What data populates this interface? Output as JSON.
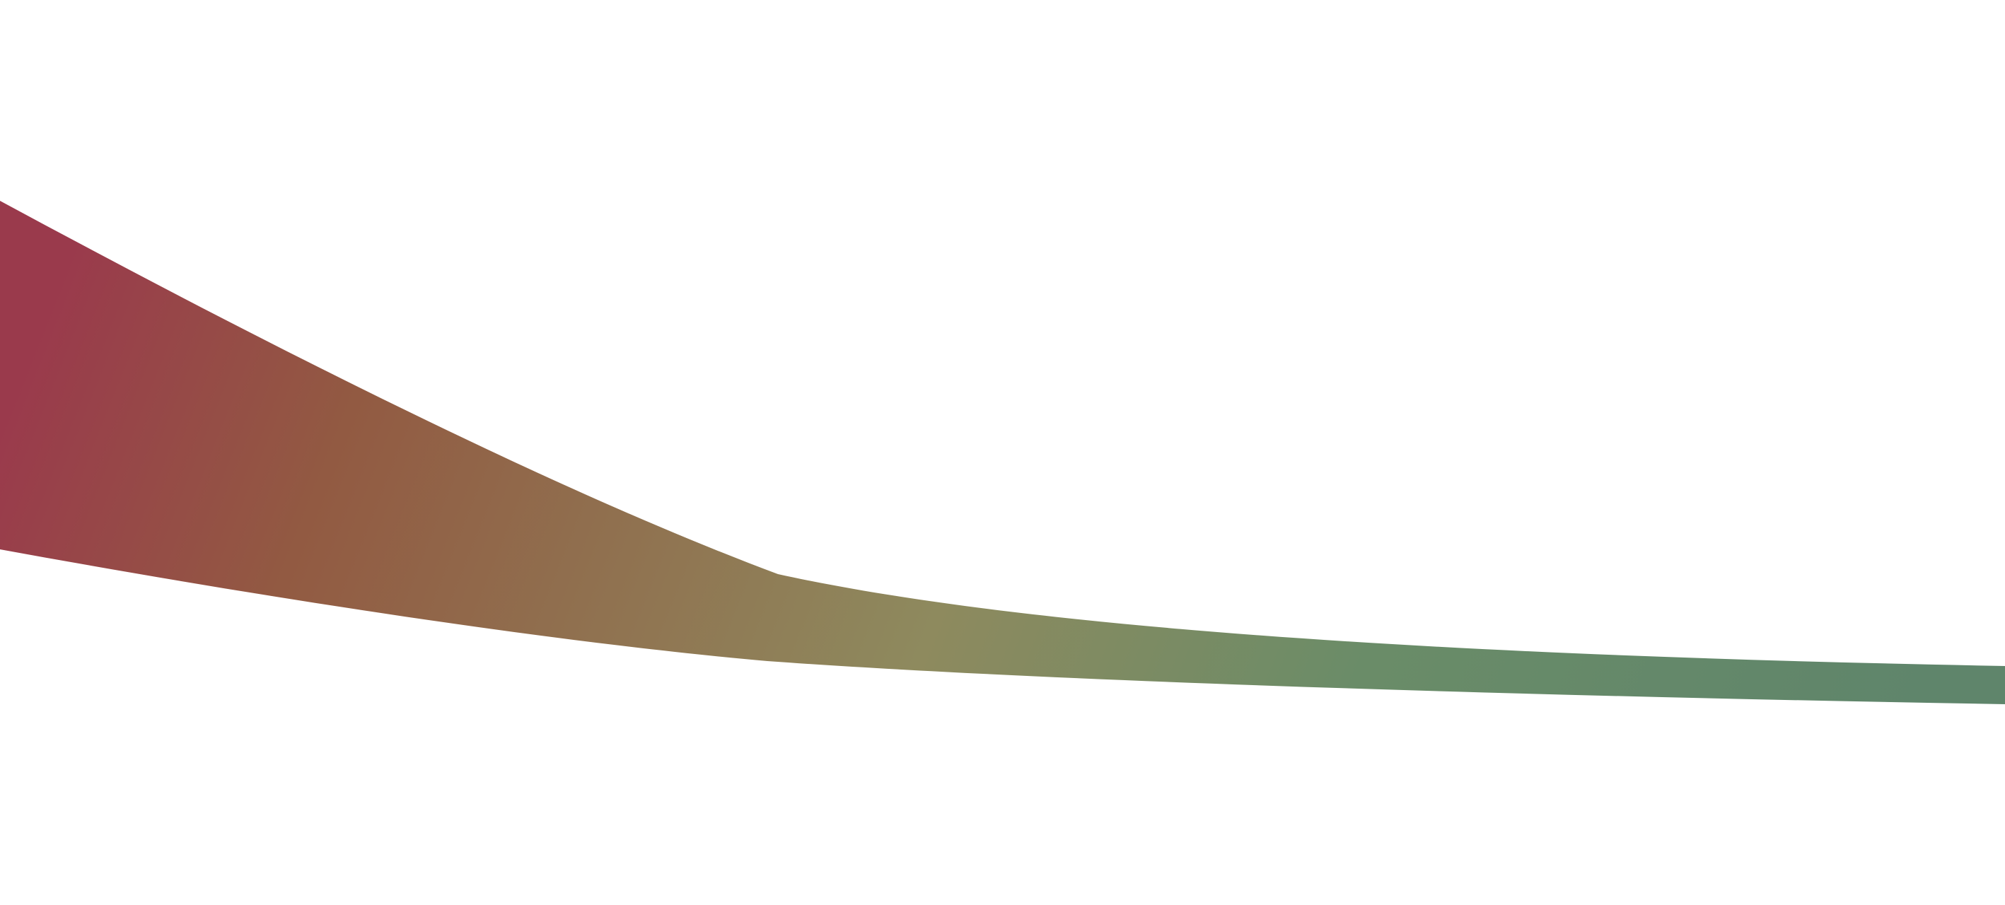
{
  "background_color": "#ffffff",
  "ribbon": {
    "gradient_colors": [
      "#9a3a4c",
      "#925a42",
      "#8e8a5e",
      "#6a8c68",
      "#5f856b"
    ]
  }
}
